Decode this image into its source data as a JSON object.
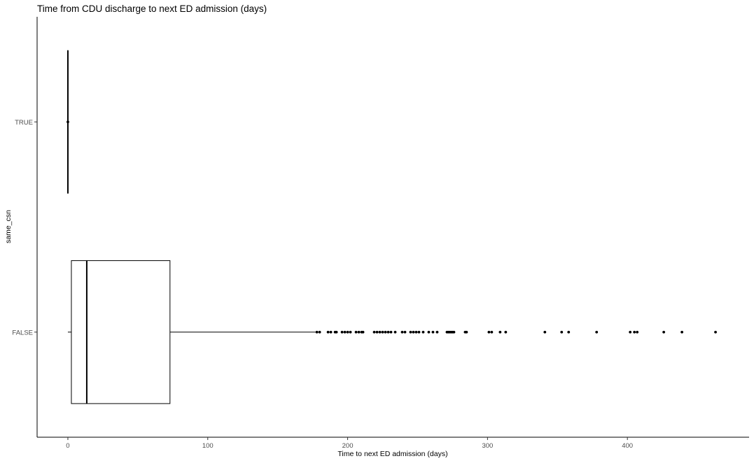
{
  "chart_data": {
    "type": "boxplot",
    "orientation": "horizontal",
    "title": "Time from CDU discharge to next ED admission (days)",
    "xlabel": "Time to next ED admission (days)",
    "ylabel": "same_csn",
    "xlim": [
      -22,
      487
    ],
    "x_ticks": [
      0,
      100,
      200,
      300,
      400
    ],
    "categories": [
      "TRUE",
      "FALSE"
    ],
    "grid": false,
    "legend": "none",
    "boxes": [
      {
        "category": "TRUE",
        "min": 0,
        "q1": 0,
        "median": 0,
        "q3": 0,
        "max": 0,
        "outliers": [
          0
        ]
      },
      {
        "category": "FALSE",
        "min": 0,
        "q1": 2.5,
        "median": 13.5,
        "q3": 73,
        "max": 177,
        "outliers": [
          178,
          180,
          186,
          188,
          191,
          192,
          196,
          198,
          200,
          202,
          206,
          208,
          210,
          211,
          219,
          221,
          223,
          225,
          227,
          229,
          231,
          234,
          239,
          241,
          245,
          247,
          249,
          251,
          254,
          258,
          261,
          264,
          271,
          272,
          273,
          274,
          275,
          276,
          284,
          285,
          301,
          303,
          309,
          313,
          341,
          353,
          358,
          378,
          402,
          405,
          407,
          426,
          439,
          463
        ]
      }
    ]
  },
  "colors": {
    "stroke": "#000000",
    "tick_text": "#4d4d4d",
    "point": "#000000"
  }
}
